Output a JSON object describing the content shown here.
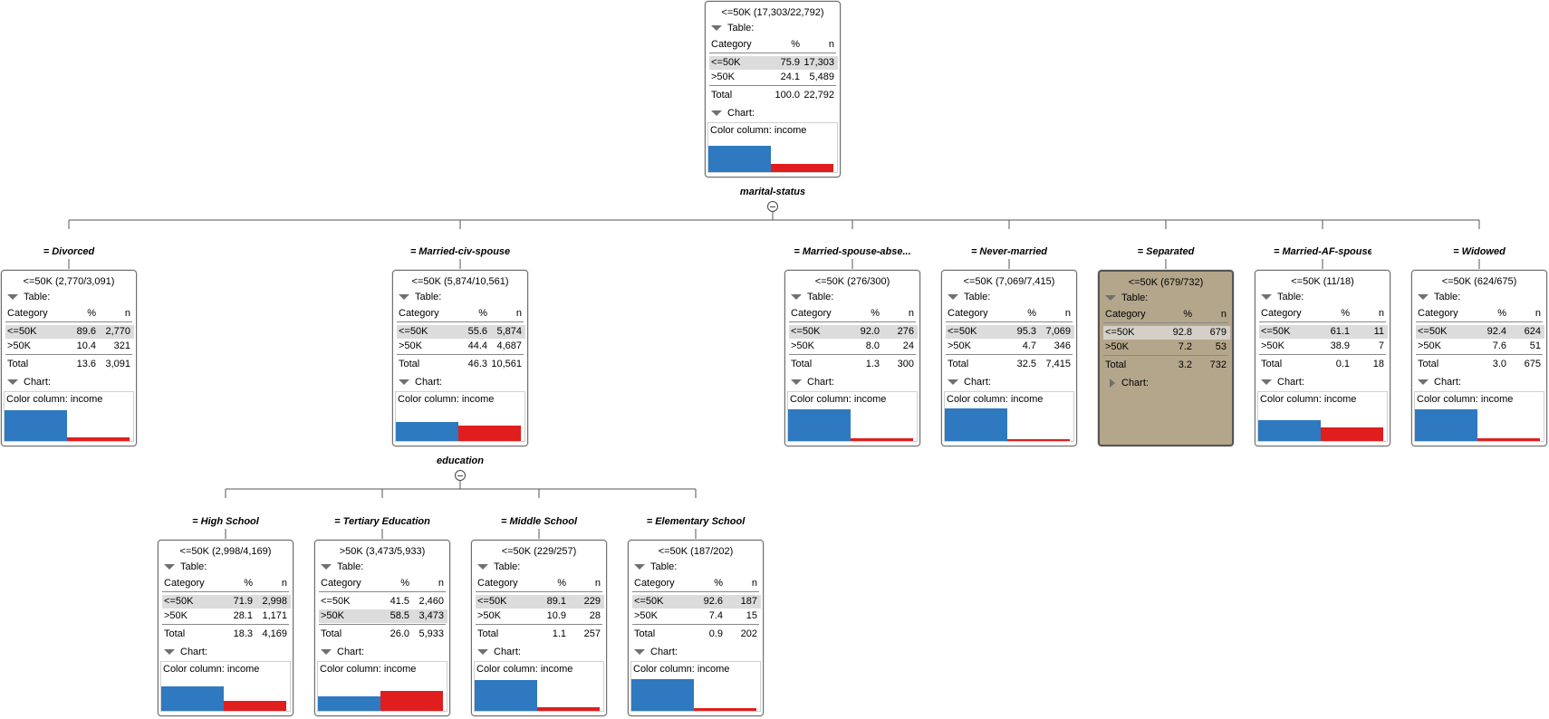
{
  "colors": {
    "low": "#2e79c0",
    "high": "#e01e1e",
    "selected_bg": "#b4a68b"
  },
  "labels": {
    "table": "Table:",
    "chart": "Chart:",
    "category": "Category",
    "pct": "%",
    "n": "n",
    "total": "Total",
    "color_column": "Color column: income"
  },
  "splits": [
    {
      "attribute": "marital-status",
      "collapse_icon": "minus-circle-icon"
    },
    {
      "attribute": "education",
      "collapse_icon": "minus-circle-icon"
    }
  ],
  "nodes": [
    {
      "id": "root",
      "branch": "",
      "title": "<=50K (17,303/22,792)",
      "rows": [
        {
          "cat": "<=50K",
          "pct": "75.9",
          "n": "17,303"
        },
        {
          "cat": ">50K",
          "pct": "24.1",
          "n": "5,489"
        }
      ],
      "total_pct": "100.0",
      "total_n": "22,792",
      "hl": 0,
      "chart": [
        0.759,
        0.241
      ],
      "chart_open": true,
      "selected": false
    },
    {
      "id": "divorced",
      "branch": "= Divorced",
      "title": "<=50K (2,770/3,091)",
      "rows": [
        {
          "cat": "<=50K",
          "pct": "89.6",
          "n": "2,770"
        },
        {
          "cat": ">50K",
          "pct": "10.4",
          "n": "321"
        }
      ],
      "total_pct": "13.6",
      "total_n": "3,091",
      "hl": 0,
      "chart": [
        0.896,
        0.104
      ],
      "chart_open": true,
      "selected": false
    },
    {
      "id": "married-civ",
      "branch": "= Married-civ-spouse",
      "title": "<=50K (5,874/10,561)",
      "rows": [
        {
          "cat": "<=50K",
          "pct": "55.6",
          "n": "5,874"
        },
        {
          "cat": ">50K",
          "pct": "44.4",
          "n": "4,687"
        }
      ],
      "total_pct": "46.3",
      "total_n": "10,561",
      "hl": 0,
      "chart": [
        0.556,
        0.444
      ],
      "chart_open": true,
      "selected": false
    },
    {
      "id": "married-absent",
      "branch": "= Married-spouse-abse...",
      "title": "<=50K (276/300)",
      "rows": [
        {
          "cat": "<=50K",
          "pct": "92.0",
          "n": "276"
        },
        {
          "cat": ">50K",
          "pct": "8.0",
          "n": "24"
        }
      ],
      "total_pct": "1.3",
      "total_n": "300",
      "hl": 0,
      "chart": [
        0.92,
        0.08
      ],
      "chart_open": true,
      "selected": false
    },
    {
      "id": "never-married",
      "branch": "= Never-married",
      "title": "<=50K (7,069/7,415)",
      "rows": [
        {
          "cat": "<=50K",
          "pct": "95.3",
          "n": "7,069"
        },
        {
          "cat": ">50K",
          "pct": "4.7",
          "n": "346"
        }
      ],
      "total_pct": "32.5",
      "total_n": "7,415",
      "hl": 0,
      "chart": [
        0.953,
        0.047
      ],
      "chart_open": true,
      "selected": false
    },
    {
      "id": "separated",
      "branch": "= Separated",
      "title": "<=50K (679/732)",
      "rows": [
        {
          "cat": "<=50K",
          "pct": "92.8",
          "n": "679"
        },
        {
          "cat": ">50K",
          "pct": "7.2",
          "n": "53"
        }
      ],
      "total_pct": "3.2",
      "total_n": "732",
      "hl": 0,
      "chart": [
        0.928,
        0.072
      ],
      "chart_open": false,
      "selected": true
    },
    {
      "id": "married-af",
      "branch": "= Married-AF-spouse",
      "title": "<=50K (11/18)",
      "rows": [
        {
          "cat": "<=50K",
          "pct": "61.1",
          "n": "11"
        },
        {
          "cat": ">50K",
          "pct": "38.9",
          "n": "7"
        }
      ],
      "total_pct": "0.1",
      "total_n": "18",
      "hl": 0,
      "chart": [
        0.611,
        0.389
      ],
      "chart_open": true,
      "selected": false
    },
    {
      "id": "widowed",
      "branch": "= Widowed",
      "title": "<=50K (624/675)",
      "rows": [
        {
          "cat": "<=50K",
          "pct": "92.4",
          "n": "624"
        },
        {
          "cat": ">50K",
          "pct": "7.6",
          "n": "51"
        }
      ],
      "total_pct": "3.0",
      "total_n": "675",
      "hl": 0,
      "chart": [
        0.924,
        0.076
      ],
      "chart_open": true,
      "selected": false
    },
    {
      "id": "high-school",
      "branch": "= High School",
      "title": "<=50K (2,998/4,169)",
      "rows": [
        {
          "cat": "<=50K",
          "pct": "71.9",
          "n": "2,998"
        },
        {
          "cat": ">50K",
          "pct": "28.1",
          "n": "1,171"
        }
      ],
      "total_pct": "18.3",
      "total_n": "4,169",
      "hl": 0,
      "chart": [
        0.719,
        0.281
      ],
      "chart_open": true,
      "selected": false
    },
    {
      "id": "tertiary",
      "branch": "= Tertiary Education",
      "title": ">50K (3,473/5,933)",
      "rows": [
        {
          "cat": "<=50K",
          "pct": "41.5",
          "n": "2,460"
        },
        {
          "cat": ">50K",
          "pct": "58.5",
          "n": "3,473"
        }
      ],
      "total_pct": "26.0",
      "total_n": "5,933",
      "hl": 1,
      "chart": [
        0.415,
        0.585
      ],
      "chart_open": true,
      "selected": false
    },
    {
      "id": "middle-school",
      "branch": "= Middle School",
      "title": "<=50K (229/257)",
      "rows": [
        {
          "cat": "<=50K",
          "pct": "89.1",
          "n": "229"
        },
        {
          "cat": ">50K",
          "pct": "10.9",
          "n": "28"
        }
      ],
      "total_pct": "1.1",
      "total_n": "257",
      "hl": 0,
      "chart": [
        0.891,
        0.109
      ],
      "chart_open": true,
      "selected": false
    },
    {
      "id": "elementary",
      "branch": "= Elementary School",
      "title": "<=50K (187/202)",
      "rows": [
        {
          "cat": "<=50K",
          "pct": "92.6",
          "n": "187"
        },
        {
          "cat": ">50K",
          "pct": "7.4",
          "n": "15"
        }
      ],
      "total_pct": "0.9",
      "total_n": "202",
      "hl": 0,
      "chart": [
        0.926,
        0.074
      ],
      "chart_open": true,
      "selected": false
    }
  ]
}
